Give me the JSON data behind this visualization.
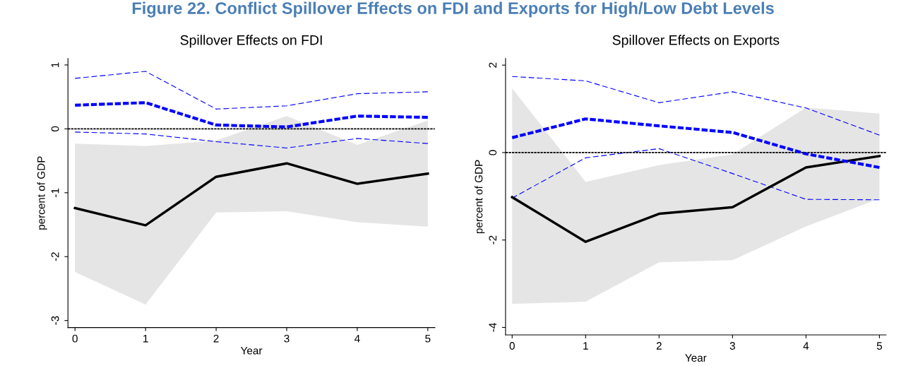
{
  "chart_data": [
    {
      "type": "line",
      "title": "Figure 22. Conflict Spillover Effects on FDI and Exports for High/Low Debt Levels",
      "subtitle": "Spillover Effects on FDI",
      "xlabel": "Year",
      "ylabel": "percent of GDP",
      "x": [
        0,
        1,
        2,
        3,
        4,
        5
      ],
      "xlim": [
        -0.1,
        5.1
      ],
      "xticks": [
        0,
        1,
        2,
        3,
        4,
        5
      ],
      "ylim": [
        -3.11,
        1.1
      ],
      "yticks": [
        -3,
        -2,
        -1,
        0,
        1
      ],
      "grid": false,
      "ref_lines": [
        {
          "axis": "y",
          "value": 0,
          "color": "#000000",
          "line_style": "dashed"
        }
      ],
      "series": [
        {
          "color": "#000000",
          "line_style": "solid",
          "values": [
            -1.24,
            -1.51,
            -0.75,
            -0.54,
            -0.86,
            -0.7
          ],
          "lower": [
            -2.24,
            -2.75,
            -1.31,
            -1.29,
            -1.46,
            -1.53
          ],
          "upper": [
            -0.23,
            -0.27,
            -0.18,
            0.2,
            -0.25,
            0.13
          ]
        },
        {
          "color": "#0000ff",
          "line_style": "dashed",
          "values": [
            0.37,
            0.41,
            0.06,
            0.03,
            0.2,
            0.18
          ]
        },
        {
          "color": "#0000ff",
          "line_style": "dashed",
          "values": [
            0.79,
            0.9,
            0.31,
            0.36,
            0.55,
            0.58
          ]
        },
        {
          "color": "#0000ff",
          "line_style": "dashed",
          "values": [
            -0.05,
            -0.08,
            -0.2,
            -0.3,
            -0.15,
            -0.23
          ]
        }
      ]
    },
    {
      "type": "line",
      "subtitle": "Spillover Effects on Exports",
      "xlabel": "Year",
      "ylabel": "percent of GDP",
      "x": [
        0,
        1,
        2,
        3,
        4,
        5
      ],
      "xlim": [
        -0.09,
        5.09
      ],
      "xticks": [
        0,
        1,
        2,
        3,
        4,
        5
      ],
      "ylim": [
        -4.17,
        2.15
      ],
      "yticks": [
        -4,
        -2,
        0,
        2
      ],
      "grid": false,
      "ref_lines": [
        {
          "axis": "y",
          "value": 0,
          "color": "#000000",
          "line_style": "dashed"
        }
      ],
      "series": [
        {
          "color": "#000000",
          "line_style": "solid",
          "values": [
            -1.02,
            -2.04,
            -1.4,
            -1.25,
            -0.34,
            -0.08
          ],
          "lower": [
            -3.46,
            -3.41,
            -2.51,
            -2.46,
            -1.69,
            -1.05
          ],
          "upper": [
            1.47,
            -0.67,
            -0.29,
            -0.04,
            1.03,
            0.89
          ]
        },
        {
          "color": "#0000ff",
          "line_style": "dashed",
          "values": [
            0.34,
            0.77,
            0.61,
            0.46,
            -0.03,
            -0.34
          ]
        },
        {
          "color": "#0000ff",
          "line_style": "dashed",
          "values": [
            1.74,
            1.64,
            1.14,
            1.39,
            1.02,
            0.4
          ]
        },
        {
          "color": "#0000ff",
          "line_style": "dashed",
          "values": [
            -1.04,
            -0.12,
            0.09,
            -0.48,
            -1.07,
            -1.08
          ]
        }
      ]
    }
  ]
}
